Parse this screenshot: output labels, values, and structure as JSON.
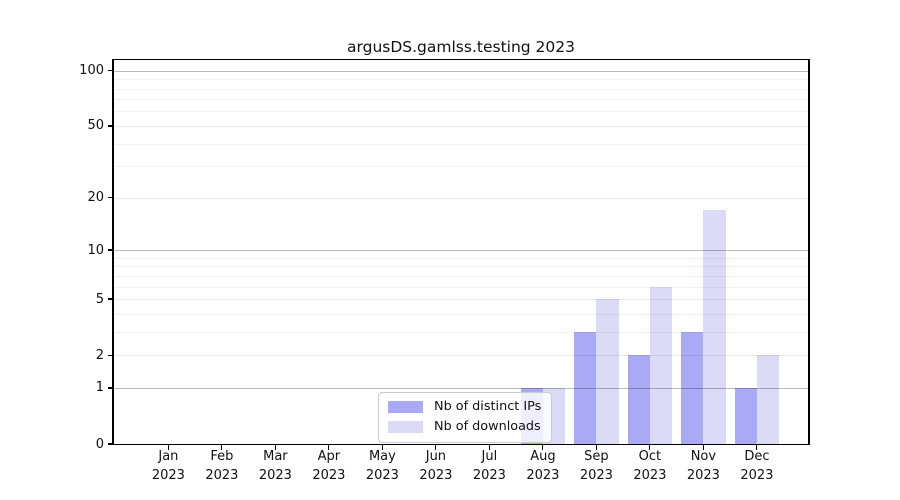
{
  "chart_data": {
    "type": "bar",
    "title": "argusDS.gamlss.testing 2023",
    "x_categories": [
      {
        "month": "Jan",
        "year": "2023"
      },
      {
        "month": "Feb",
        "year": "2023"
      },
      {
        "month": "Mar",
        "year": "2023"
      },
      {
        "month": "Apr",
        "year": "2023"
      },
      {
        "month": "May",
        "year": "2023"
      },
      {
        "month": "Jun",
        "year": "2023"
      },
      {
        "month": "Jul",
        "year": "2023"
      },
      {
        "month": "Aug",
        "year": "2023"
      },
      {
        "month": "Sep",
        "year": "2023"
      },
      {
        "month": "Oct",
        "year": "2023"
      },
      {
        "month": "Nov",
        "year": "2023"
      },
      {
        "month": "Dec",
        "year": "2023"
      }
    ],
    "series": [
      {
        "name": "Nb of distinct IPs",
        "color": "#a9a9f6",
        "values": [
          0,
          0,
          0,
          0,
          0,
          0,
          0,
          1,
          3,
          2,
          3,
          1
        ]
      },
      {
        "name": "Nb of downloads",
        "color": "#dbdbf8",
        "values": [
          0,
          0,
          0,
          0,
          0,
          0,
          0,
          1,
          5,
          6,
          17,
          2
        ]
      }
    ],
    "y_axis": {
      "scale": "log1p",
      "ticks": [
        0,
        1,
        2,
        5,
        10,
        20,
        50,
        100
      ],
      "major_gridlines": [
        1,
        10,
        100
      ],
      "minor_gridlines": [
        3,
        4,
        6,
        7,
        8,
        9,
        30,
        40,
        60,
        70,
        80,
        90
      ],
      "ylim": [
        0,
        115
      ]
    },
    "grid": true,
    "legend_position": "lower-center"
  },
  "legend": {
    "items": [
      {
        "label": "Nb of distinct IPs",
        "color": "#a9a9f6"
      },
      {
        "label": "Nb of downloads",
        "color": "#dbdbf8"
      }
    ]
  }
}
